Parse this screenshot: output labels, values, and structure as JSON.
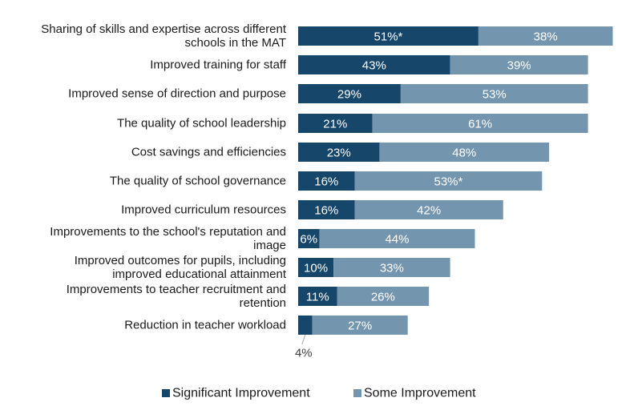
{
  "chart_data": {
    "type": "bar",
    "orientation": "horizontal",
    "stacked": true,
    "categories": [
      [
        "Sharing of skills and expertise across different",
        "schools in the MAT"
      ],
      [
        "Improved training for staff"
      ],
      [
        "Improved sense of direction and purpose"
      ],
      [
        "The quality of school leadership"
      ],
      [
        "Cost savings and efficiencies"
      ],
      [
        "The quality of school governance"
      ],
      [
        "Improved curriculum resources"
      ],
      [
        "Improvements to the school's reputation and",
        "image"
      ],
      [
        "Improved outcomes for pupils, including",
        "improved educational attainment"
      ],
      [
        "Improvements to teacher recruitment and",
        "retention"
      ],
      [
        "Reduction in teacher workload"
      ]
    ],
    "series": [
      {
        "name": "Significant Improvement",
        "color": "#17466b",
        "values": [
          51,
          43,
          29,
          21,
          23,
          16,
          16,
          6,
          10,
          11,
          4
        ],
        "labels": [
          "51%*",
          "43%",
          "29%",
          "21%",
          "23%",
          "16%",
          "16%",
          "6%",
          "10%",
          "11%",
          ""
        ]
      },
      {
        "name": "Some Improvement",
        "color": "#7495ae",
        "values": [
          38,
          39,
          53,
          61,
          48,
          53,
          42,
          44,
          33,
          26,
          27
        ],
        "labels": [
          "38%",
          "39%",
          "53%",
          "61%",
          "48%",
          "53%*",
          "42%",
          "44%",
          "33%",
          "26%",
          "27%"
        ]
      }
    ],
    "callout": {
      "category_index": 10,
      "series_index": 0,
      "label": "4%"
    },
    "xlim": [
      0,
      89
    ],
    "grid": false,
    "legend_position": "bottom"
  }
}
